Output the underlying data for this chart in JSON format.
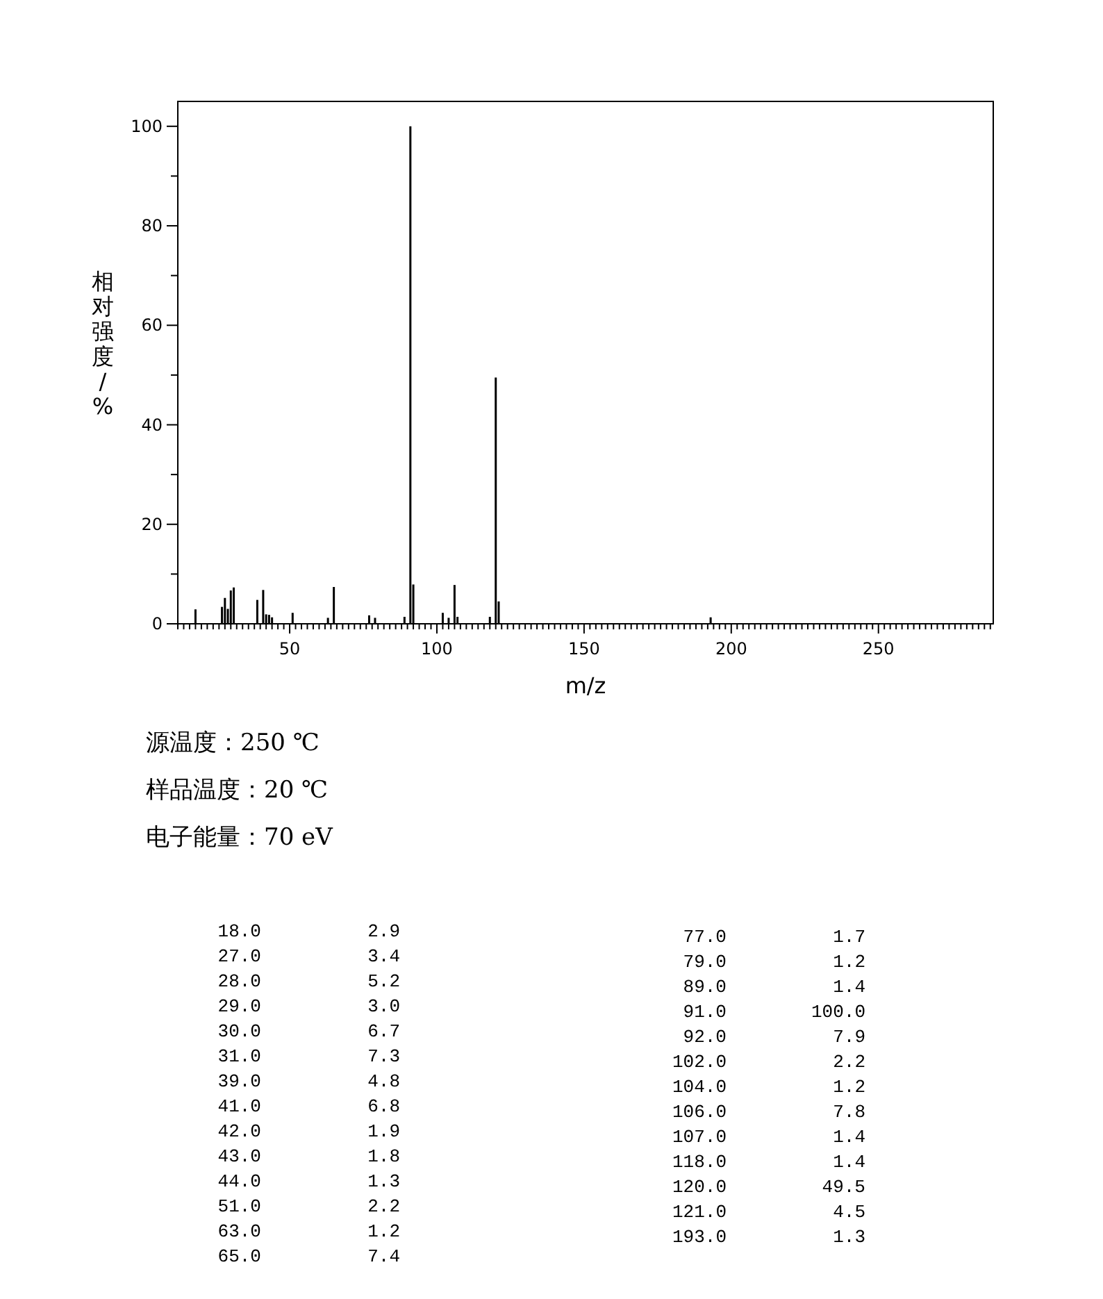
{
  "chart_data": {
    "type": "bar",
    "xlabel": "m/z",
    "ylabel": "相对强度/%",
    "x": [
      18,
      27,
      28,
      29,
      30,
      31,
      39,
      41,
      42,
      43,
      44,
      51,
      63,
      65,
      77,
      79,
      89,
      91,
      92,
      102,
      104,
      106,
      107,
      118,
      120,
      121,
      193
    ],
    "values": [
      2.9,
      3.4,
      5.2,
      3.0,
      6.7,
      7.3,
      4.8,
      6.8,
      1.9,
      1.8,
      1.3,
      2.2,
      1.2,
      7.4,
      1.7,
      1.2,
      1.4,
      100.0,
      7.9,
      2.2,
      1.2,
      7.8,
      1.4,
      1.4,
      49.5,
      4.5,
      1.3
    ],
    "color": "#000000",
    "xlim": [
      12,
      289
    ],
    "ylim": [
      0,
      105
    ],
    "xticks": [
      {
        "value": 12,
        "label": null
      },
      {
        "value": 14,
        "label": null
      },
      {
        "value": 16,
        "label": null
      },
      {
        "value": 18,
        "label": null
      },
      {
        "value": 20,
        "label": null
      },
      {
        "value": 22,
        "label": null
      },
      {
        "value": 24,
        "label": null
      },
      {
        "value": 26,
        "label": null
      },
      {
        "value": 28,
        "label": null
      },
      {
        "value": 30,
        "label": null
      },
      {
        "value": 32,
        "label": null
      },
      {
        "value": 34,
        "label": null
      },
      {
        "value": 36,
        "label": null
      },
      {
        "value": 38,
        "label": null
      },
      {
        "value": 40,
        "label": null
      },
      {
        "value": 42,
        "label": null
      },
      {
        "value": 44,
        "label": null
      },
      {
        "value": 46,
        "label": null
      },
      {
        "value": 48,
        "label": null
      },
      50,
      {
        "value": 52,
        "label": null
      },
      {
        "value": 54,
        "label": null
      },
      {
        "value": 56,
        "label": null
      },
      {
        "value": 58,
        "label": null
      },
      {
        "value": 60,
        "label": null
      },
      {
        "value": 62,
        "label": null
      },
      {
        "value": 64,
        "label": null
      },
      {
        "value": 66,
        "label": null
      },
      {
        "value": 68,
        "label": null
      },
      {
        "value": 70,
        "label": null
      },
      {
        "value": 72,
        "label": null
      },
      {
        "value": 74,
        "label": null
      },
      {
        "value": 76,
        "label": null
      },
      {
        "value": 78,
        "label": null
      },
      {
        "value": 80,
        "label": null
      },
      {
        "value": 82,
        "label": null
      },
      {
        "value": 84,
        "label": null
      },
      {
        "value": 86,
        "label": null
      },
      {
        "value": 88,
        "label": null
      },
      {
        "value": 90,
        "label": null
      },
      {
        "value": 92,
        "label": null
      },
      {
        "value": 94,
        "label": null
      },
      {
        "value": 96,
        "label": null
      },
      {
        "value": 98,
        "label": null
      },
      100,
      {
        "value": 102,
        "label": null
      },
      {
        "value": 104,
        "label": null
      },
      {
        "value": 106,
        "label": null
      },
      {
        "value": 108,
        "label": null
      },
      {
        "value": 110,
        "label": null
      },
      {
        "value": 112,
        "label": null
      },
      {
        "value": 114,
        "label": null
      },
      {
        "value": 116,
        "label": null
      },
      {
        "value": 118,
        "label": null
      },
      {
        "value": 120,
        "label": null
      },
      {
        "value": 122,
        "label": null
      },
      {
        "value": 124,
        "label": null
      },
      {
        "value": 126,
        "label": null
      },
      {
        "value": 128,
        "label": null
      },
      {
        "value": 130,
        "label": null
      },
      {
        "value": 132,
        "label": null
      },
      {
        "value": 134,
        "label": null
      },
      {
        "value": 136,
        "label": null
      },
      {
        "value": 138,
        "label": null
      },
      {
        "value": 140,
        "label": null
      },
      {
        "value": 142,
        "label": null
      },
      {
        "value": 144,
        "label": null
      },
      {
        "value": 146,
        "label": null
      },
      {
        "value": 148,
        "label": null
      },
      150,
      {
        "value": 152,
        "label": null
      },
      {
        "value": 154,
        "label": null
      },
      {
        "value": 156,
        "label": null
      },
      {
        "value": 158,
        "label": null
      },
      {
        "value": 160,
        "label": null
      },
      {
        "value": 162,
        "label": null
      },
      {
        "value": 164,
        "label": null
      },
      {
        "value": 166,
        "label": null
      },
      {
        "value": 168,
        "label": null
      },
      {
        "value": 170,
        "label": null
      },
      {
        "value": 172,
        "label": null
      },
      {
        "value": 174,
        "label": null
      },
      {
        "value": 176,
        "label": null
      },
      {
        "value": 178,
        "label": null
      },
      {
        "value": 180,
        "label": null
      },
      {
        "value": 182,
        "label": null
      },
      {
        "value": 184,
        "label": null
      },
      {
        "value": 186,
        "label": null
      },
      {
        "value": 188,
        "label": null
      },
      {
        "value": 190,
        "label": null
      },
      {
        "value": 192,
        "label": null
      },
      {
        "value": 194,
        "label": null
      },
      {
        "value": 196,
        "label": null
      },
      {
        "value": 198,
        "label": null
      },
      200,
      {
        "value": 202,
        "label": null
      },
      {
        "value": 204,
        "label": null
      },
      {
        "value": 206,
        "label": null
      },
      {
        "value": 208,
        "label": null
      },
      {
        "value": 210,
        "label": null
      },
      {
        "value": 212,
        "label": null
      },
      {
        "value": 214,
        "label": null
      },
      {
        "value": 216,
        "label": null
      },
      {
        "value": 218,
        "label": null
      },
      {
        "value": 220,
        "label": null
      },
      {
        "value": 222,
        "label": null
      },
      {
        "value": 224,
        "label": null
      },
      {
        "value": 226,
        "label": null
      },
      {
        "value": 228,
        "label": null
      },
      {
        "value": 230,
        "label": null
      },
      {
        "value": 232,
        "label": null
      },
      {
        "value": 234,
        "label": null
      },
      {
        "value": 236,
        "label": null
      },
      {
        "value": 238,
        "label": null
      },
      {
        "value": 240,
        "label": null
      },
      {
        "value": 242,
        "label": null
      },
      {
        "value": 244,
        "label": null
      },
      {
        "value": 246,
        "label": null
      },
      {
        "value": 248,
        "label": null
      },
      250,
      {
        "value": 252,
        "label": null
      },
      {
        "value": 254,
        "label": null
      },
      {
        "value": 256,
        "label": null
      },
      {
        "value": 258,
        "label": null
      },
      {
        "value": 260,
        "label": null
      },
      {
        "value": 262,
        "label": null
      },
      {
        "value": 264,
        "label": null
      },
      {
        "value": 266,
        "label": null
      },
      {
        "value": 268,
        "label": null
      },
      {
        "value": 270,
        "label": null
      },
      {
        "value": 272,
        "label": null
      },
      {
        "value": 274,
        "label": null
      },
      {
        "value": 276,
        "label": null
      },
      {
        "value": 278,
        "label": null
      },
      {
        "value": 280,
        "label": null
      },
      {
        "value": 282,
        "label": null
      },
      {
        "value": 284,
        "label": null
      },
      {
        "value": 286,
        "label": null
      },
      {
        "value": 288,
        "label": null
      }
    ],
    "yticks": [
      0,
      {
        "value": 10,
        "label": null
      },
      20,
      {
        "value": 30,
        "label": null
      },
      40,
      {
        "value": 50,
        "label": null
      },
      60,
      {
        "value": 70,
        "label": null
      },
      80,
      {
        "value": 90,
        "label": null
      },
      100
    ],
    "annotations": [
      "源温度：250 ℃",
      "样品温度：20 ℃",
      "电子能量：70 eV",
      "18.0",
      "2.9",
      "27.0",
      "3.4",
      "28.0",
      "5.2",
      "29.0",
      "3.0",
      "30.0",
      "6.7",
      "31.0",
      "7.3",
      "39.0",
      "4.8",
      "41.0",
      "6.8",
      "42.0",
      "1.9",
      "43.0",
      "1.8",
      "44.0",
      "1.3",
      "51.0",
      "2.2",
      "63.0",
      "1.2",
      "65.0",
      "7.4",
      "77.0",
      "1.7",
      "79.0",
      "1.2",
      "89.0",
      "1.4",
      "91.0",
      "100.0",
      "92.0",
      "7.9",
      "102.0",
      "2.2",
      "104.0",
      "1.2",
      "106.0",
      "7.8",
      "107.0",
      "1.4",
      "118.0",
      "1.4",
      "120.0",
      "49.5",
      "121.0",
      "4.5",
      "193.0",
      "1.3"
    ]
  }
}
